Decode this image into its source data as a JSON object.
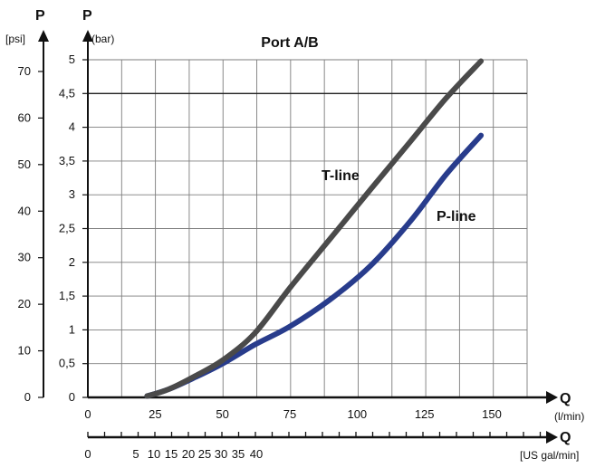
{
  "chart_data": {
    "type": "line",
    "title": "Port A/B",
    "y_left": {
      "symbol": "P",
      "unit": "[psi]",
      "ticks": [
        "0",
        "10",
        "20",
        "30",
        "40",
        "50",
        "60",
        "70"
      ]
    },
    "y_right": {
      "symbol": "P",
      "unit": "(bar)",
      "ticks": [
        "0",
        "0,5",
        "1",
        "1,5",
        "2",
        "2,5",
        "3",
        "3,5",
        "4",
        "4,5",
        "5"
      ],
      "ylim": [
        0,
        5
      ]
    },
    "x_main": {
      "symbol": "Q",
      "unit": "(l/min)",
      "ticks": [
        "0",
        "25",
        "50",
        "75",
        "100",
        "125",
        "150"
      ]
    },
    "x_secondary": {
      "symbol": "Q",
      "unit": "[US gal/min]",
      "ticks": [
        "0",
        "5",
        "10",
        "15",
        "20",
        "25",
        "30",
        "35",
        "40"
      ]
    },
    "series": [
      {
        "name": "T-line",
        "color": "#4a4a4a",
        "points": [
          [
            22,
            0.02
          ],
          [
            30,
            0.12
          ],
          [
            40,
            0.32
          ],
          [
            50,
            0.55
          ],
          [
            62,
            0.95
          ],
          [
            75,
            1.62
          ],
          [
            90,
            2.35
          ],
          [
            105,
            3.08
          ],
          [
            120,
            3.8
          ],
          [
            133,
            4.43
          ],
          [
            146,
            4.98
          ]
        ]
      },
      {
        "name": "P-line",
        "color": "#283c8c",
        "points": [
          [
            22,
            0.02
          ],
          [
            30,
            0.12
          ],
          [
            40,
            0.3
          ],
          [
            50,
            0.5
          ],
          [
            62,
            0.78
          ],
          [
            75,
            1.05
          ],
          [
            90,
            1.45
          ],
          [
            105,
            1.95
          ],
          [
            120,
            2.62
          ],
          [
            133,
            3.3
          ],
          [
            146,
            3.88
          ]
        ]
      }
    ],
    "grid": true
  }
}
